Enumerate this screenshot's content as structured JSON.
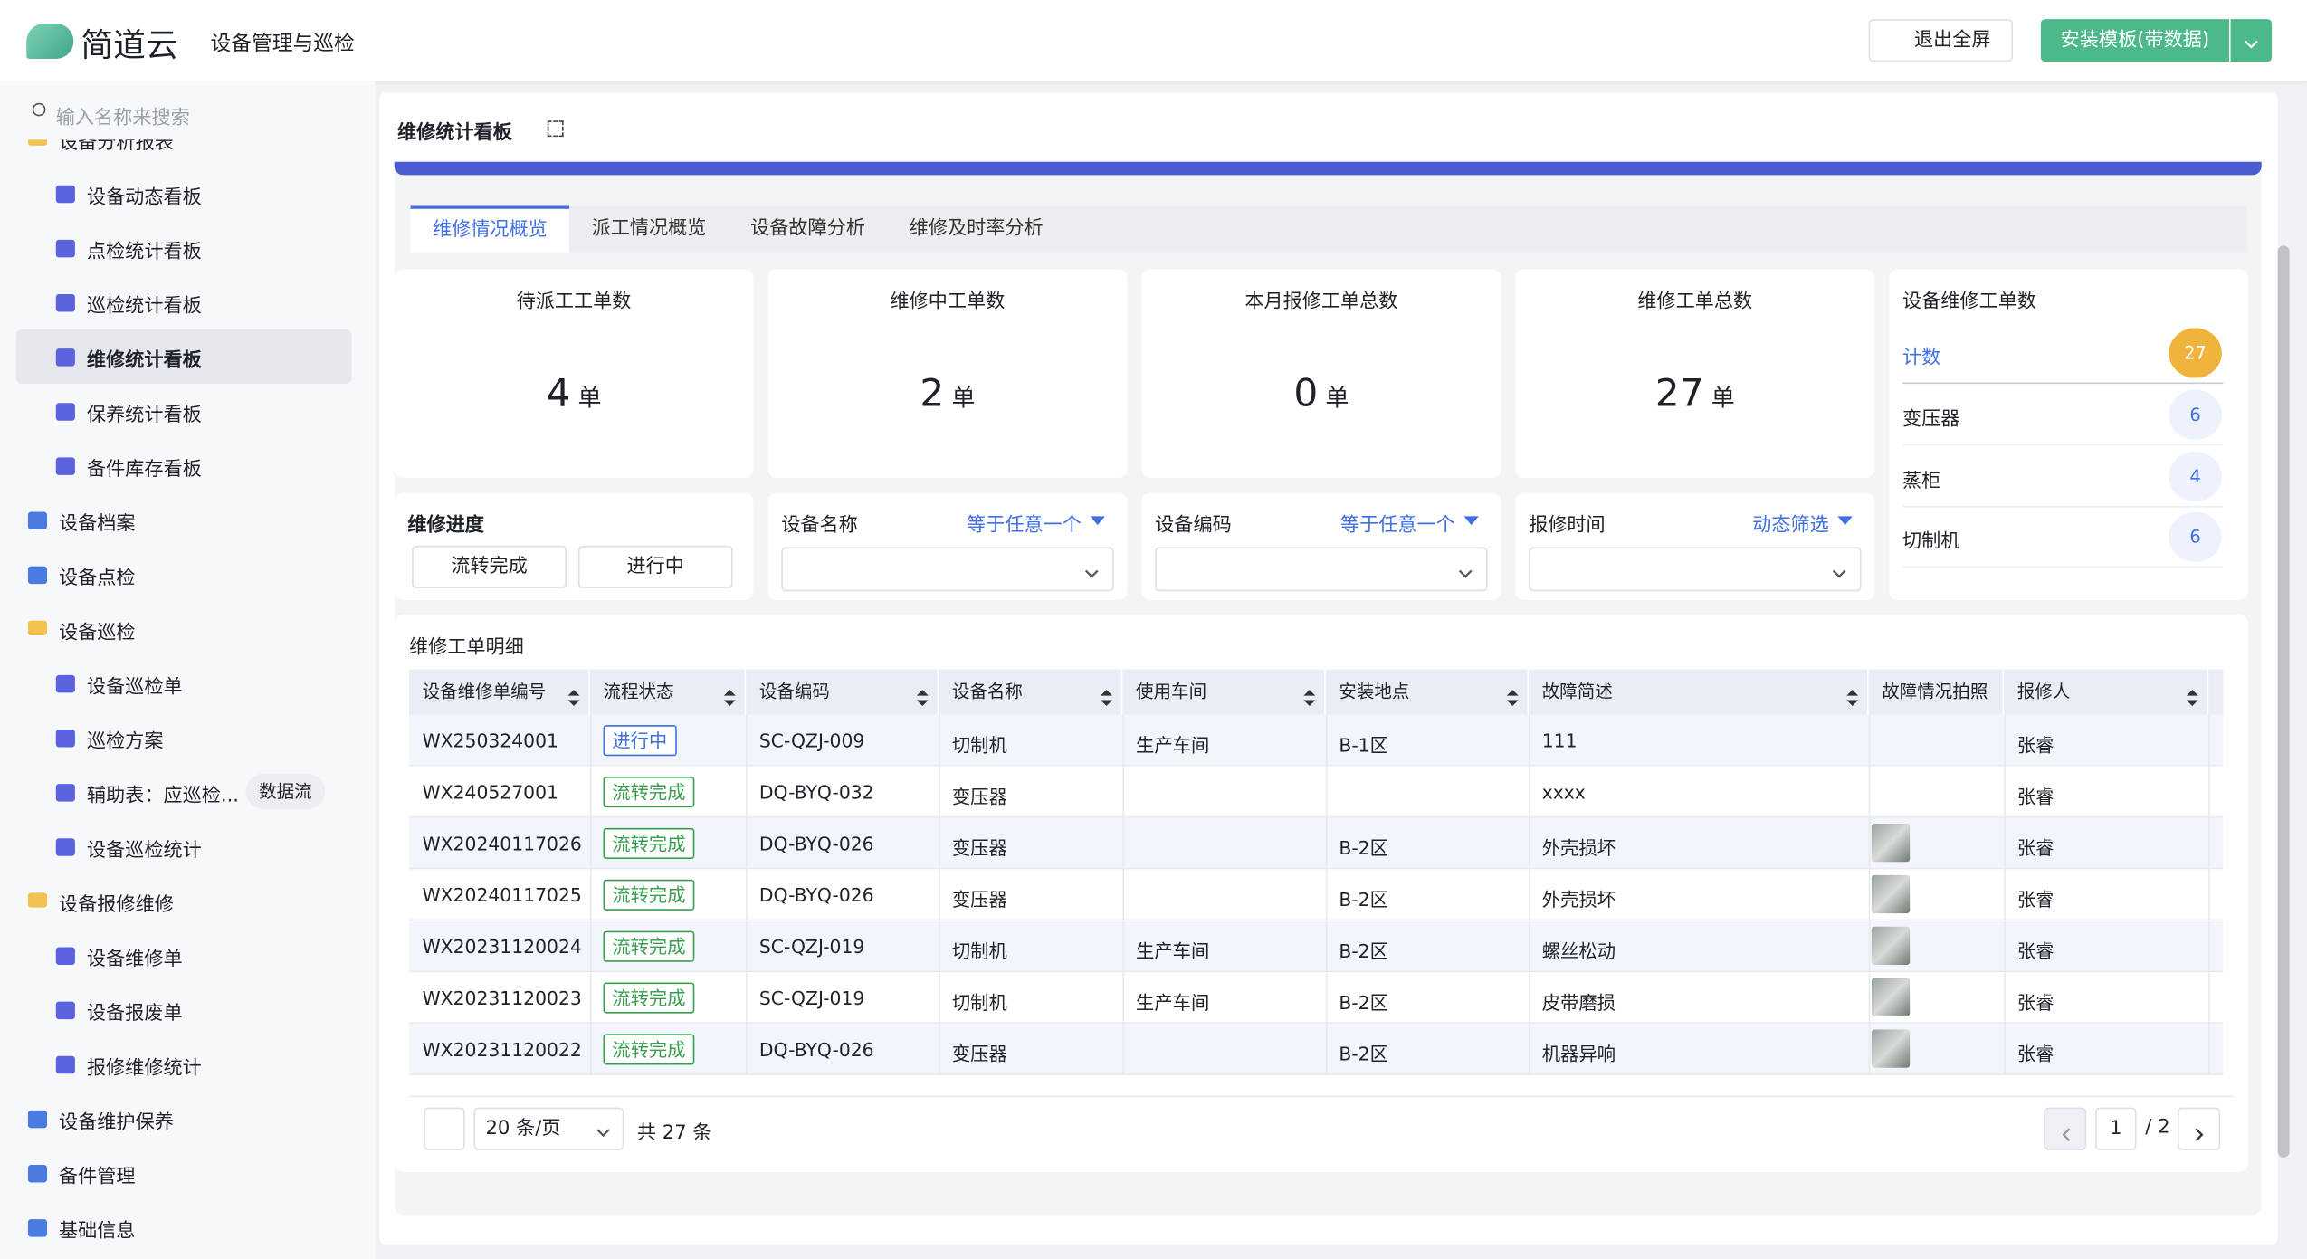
{
  "header": {
    "brand": "简道云",
    "app": "设备管理与巡检",
    "exit_fullscreen": "退出全屏",
    "install": "安装模板(带数据)"
  },
  "sidebar": {
    "search_placeholder": "输入名称来搜索",
    "nav": [
      {
        "label": "设备分析报表",
        "children": [
          {
            "label": "设备动态看板"
          },
          {
            "label": "点检统计看板"
          },
          {
            "label": "巡检统计看板"
          },
          {
            "label": "维修统计看板",
            "active": true
          },
          {
            "label": "保养统计看板"
          },
          {
            "label": "备件库存看板"
          }
        ]
      },
      {
        "label": "设备档案"
      },
      {
        "label": "设备点检"
      },
      {
        "label": "设备巡检",
        "children": [
          {
            "label": "设备巡检单"
          },
          {
            "label": "巡检方案"
          },
          {
            "label": "辅助表：应巡检...",
            "tag": "数据流"
          },
          {
            "label": "设备巡检统计"
          }
        ]
      },
      {
        "label": "设备报修维修",
        "children": [
          {
            "label": "设备维修单"
          },
          {
            "label": "设备报废单"
          },
          {
            "label": "报修维修统计"
          }
        ]
      },
      {
        "label": "设备维护保养"
      },
      {
        "label": "备件管理"
      },
      {
        "label": "基础信息"
      }
    ]
  },
  "main": {
    "title": "维修统计看板",
    "tabs": [
      "维修情况概览",
      "派工情况概览",
      "设备故障分析",
      "维修及时率分析"
    ],
    "active_tab": 0,
    "cards": [
      {
        "title": "待派工工单数",
        "value": 4,
        "unit": "单"
      },
      {
        "title": "维修中工单数",
        "value": 2,
        "unit": "单"
      },
      {
        "title": "本月报修工单总数",
        "value": 0,
        "unit": "单"
      },
      {
        "title": "维修工单总数",
        "value": 27,
        "unit": "单"
      }
    ],
    "breakdown": {
      "title": "设备维修工单数",
      "total": {
        "label": "计数",
        "count": 27
      },
      "rows": [
        {
          "label": "变压器",
          "count": 6
        },
        {
          "label": "蒸柜",
          "count": 4
        },
        {
          "label": "切制机",
          "count": 6
        }
      ]
    },
    "progress": {
      "label": "维修进度",
      "options": [
        "流转完成",
        "进行中"
      ]
    },
    "filters": [
      {
        "label": "设备名称",
        "mode": "等于任意一个"
      },
      {
        "label": "设备编码",
        "mode": "等于任意一个"
      },
      {
        "label": "报修时间",
        "mode": "动态筛选"
      }
    ],
    "table": {
      "title": "维修工单明细",
      "status_column": 1,
      "columns": [
        "设备维修单编号",
        "流程状态",
        "设备编码",
        "设备名称",
        "使用车间",
        "安装地点",
        "故障简述",
        "故障情况拍照",
        "报修人"
      ],
      "rows": [
        {
          "status_color": "#3f6fe0",
          "cells": [
            "WX250324001",
            "进行中",
            "SC-QZJ-009",
            "切制机",
            "生产车间",
            "B-1区",
            "111",
            false,
            "张睿"
          ]
        },
        {
          "status_color": "#3a9e4f",
          "cells": [
            "WX240527001",
            "流转完成",
            "DQ-BYQ-032",
            "变压器",
            null,
            null,
            "xxxx",
            false,
            "张睿"
          ]
        },
        {
          "status_color": "#3a9e4f",
          "cells": [
            "WX20240117026",
            "流转完成",
            "DQ-BYQ-026",
            "变压器",
            null,
            "B-2区",
            "外壳损坏",
            true,
            "张睿"
          ]
        },
        {
          "status_color": "#3a9e4f",
          "cells": [
            "WX20240117025",
            "流转完成",
            "DQ-BYQ-026",
            "变压器",
            null,
            "B-2区",
            "外壳损坏",
            true,
            "张睿"
          ]
        },
        {
          "status_color": "#3a9e4f",
          "cells": [
            "WX20231120024",
            "流转完成",
            "SC-QZJ-019",
            "切制机",
            "生产车间",
            "B-2区",
            "螺丝松动",
            true,
            "张睿"
          ]
        },
        {
          "status_color": "#3a9e4f",
          "cells": [
            "WX20231120023",
            "流转完成",
            "SC-QZJ-019",
            "切制机",
            "生产车间",
            "B-2区",
            "皮带磨损",
            true,
            "张睿"
          ]
        },
        {
          "status_color": "#3a9e4f",
          "cells": [
            "WX20231120022",
            "流转完成",
            "DQ-BYQ-026",
            "变压器",
            null,
            "B-2区",
            "机器异响",
            true,
            "张睿"
          ]
        }
      ],
      "page_size": "20 条/页",
      "total": "共 27 条",
      "page": 1,
      "pages": "/ 2"
    }
  }
}
